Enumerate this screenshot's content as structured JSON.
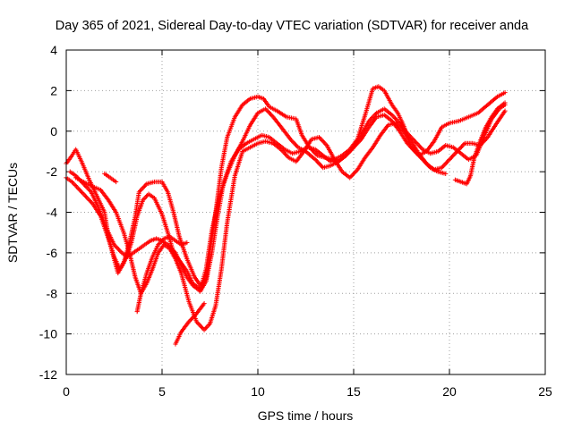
{
  "chart_data": {
    "type": "scatter",
    "title": "Day 365 of 2021, Sidereal Day-to-day VTEC variation (SDTVAR) for receiver anda",
    "xlabel": "GPS time / hours",
    "ylabel": "SDTVAR / TECUs",
    "xlim": [
      0,
      25
    ],
    "ylim": [
      -12,
      4
    ],
    "x_ticks": [
      0,
      5,
      10,
      15,
      20,
      25
    ],
    "y_ticks": [
      -12,
      -10,
      -8,
      -6,
      -4,
      -2,
      0,
      2,
      4
    ],
    "grid": true,
    "marker": "+",
    "marker_color": "#ff0000",
    "series": [
      {
        "x": [
          0.0,
          0.3,
          0.5,
          0.8,
          1.2,
          1.6,
          2.0,
          2.2,
          2.5,
          2.7,
          3.0,
          3.3,
          3.6,
          3.8,
          4.2,
          4.6,
          5.0,
          5.3,
          5.6,
          5.9,
          6.3,
          6.7,
          7.0,
          7.3,
          7.5,
          7.8,
          8.1,
          8.4,
          8.8,
          9.2,
          9.6,
          10.0,
          10.3,
          10.6,
          11.0,
          11.5,
          12.0,
          12.3,
          12.7,
          13.1,
          13.5,
          14.0,
          14.4,
          14.8,
          15.2,
          15.6,
          16.0,
          16.3,
          16.6,
          17.0,
          17.3,
          17.6,
          18.0,
          18.4,
          18.8,
          19.2,
          19.6,
          20.0,
          20.5,
          21.0,
          21.5,
          22.0,
          22.5,
          22.9
        ],
        "y": [
          -1.6,
          -1.2,
          -0.9,
          -1.5,
          -2.4,
          -3.2,
          -4.0,
          -5.2,
          -6.3,
          -7.0,
          -6.5,
          -5.5,
          -4.2,
          -3.0,
          -2.6,
          -2.5,
          -2.5,
          -3.0,
          -4.0,
          -5.2,
          -6.3,
          -7.2,
          -7.6,
          -7.3,
          -6.0,
          -4.0,
          -1.8,
          -0.3,
          0.7,
          1.3,
          1.6,
          1.7,
          1.6,
          1.2,
          1.0,
          0.7,
          0.6,
          -0.2,
          -0.8,
          -1.2,
          -1.3,
          -1.4,
          -1.2,
          -0.9,
          -0.4,
          0.8,
          2.1,
          2.2,
          2.0,
          1.3,
          0.9,
          0.3,
          -0.8,
          -1.2,
          -1.0,
          -0.5,
          0.2,
          0.4,
          0.5,
          0.7,
          0.9,
          1.3,
          1.7,
          1.9
        ]
      },
      {
        "x": [
          0.0,
          0.3,
          0.6,
          1.0,
          1.4,
          1.8,
          2.2,
          2.5,
          2.8,
          3.1,
          3.4,
          3.7,
          4.0,
          4.3,
          4.6,
          5.0,
          5.3,
          5.6,
          6.0,
          6.3,
          6.6,
          7.0,
          7.3,
          7.6,
          8.0,
          8.4,
          8.8,
          9.2,
          9.6,
          10.0,
          10.4,
          10.8,
          11.3,
          11.7,
          12.1,
          12.5,
          13.0,
          13.4,
          13.8,
          14.2,
          14.6,
          15.0,
          15.4,
          15.8,
          16.2,
          16.6,
          17.0,
          17.4,
          17.8,
          18.2,
          18.6,
          19.0,
          19.4,
          19.8,
          20.2,
          20.6,
          21.0,
          21.4,
          21.8,
          22.2,
          22.6,
          22.9
        ],
        "y": [
          -2.3,
          -2.5,
          -2.8,
          -3.2,
          -3.6,
          -4.2,
          -5.3,
          -6.2,
          -6.8,
          -6.3,
          -5.5,
          -4.2,
          -3.4,
          -3.1,
          -3.3,
          -4.1,
          -5.0,
          -6.0,
          -6.5,
          -6.9,
          -7.5,
          -7.8,
          -6.8,
          -4.9,
          -3.2,
          -2.1,
          -1.2,
          -0.5,
          0.3,
          0.9,
          1.1,
          0.7,
          0.1,
          -0.4,
          -0.8,
          -1.0,
          -1.4,
          -1.8,
          -1.7,
          -1.5,
          -1.2,
          -0.8,
          -0.2,
          0.5,
          0.9,
          1.1,
          0.8,
          0.4,
          -0.1,
          -0.5,
          -0.9,
          -1.1,
          -1.0,
          -0.7,
          -0.8,
          -1.1,
          -1.4,
          -1.2,
          -0.3,
          0.6,
          1.1,
          1.3
        ]
      },
      {
        "x": [
          0.2,
          0.5,
          0.9,
          1.3,
          1.7,
          2.1,
          2.5,
          2.9,
          3.2,
          3.5,
          3.8,
          4.1,
          4.4,
          4.7,
          5.0,
          5.3,
          5.7,
          6.0,
          6.3,
          6.6,
          7.0,
          7.3,
          7.6,
          7.9,
          8.2,
          8.6,
          9.0,
          9.4,
          9.8,
          10.2,
          10.6,
          11.0,
          11.4,
          11.8,
          12.2,
          12.6,
          13.0,
          13.4,
          13.8,
          14.2,
          14.6,
          15.0,
          15.4,
          15.8,
          16.2,
          16.6,
          17.0,
          17.4,
          17.8,
          18.2,
          18.6,
          19.0,
          19.4,
          19.8
        ],
        "y": [
          -2.0,
          -2.2,
          -2.6,
          -3.0,
          -3.8,
          -4.8,
          -5.6,
          -6.0,
          -6.2,
          -6.0,
          -5.8,
          -5.6,
          -5.4,
          -5.3,
          -5.4,
          -5.6,
          -6.0,
          -6.6,
          -7.2,
          -7.6,
          -7.9,
          -7.4,
          -6.0,
          -4.2,
          -2.6,
          -1.5,
          -0.9,
          -0.6,
          -0.4,
          -0.2,
          -0.3,
          -0.6,
          -0.9,
          -1.1,
          -1.0,
          -0.8,
          -0.9,
          -1.2,
          -1.5,
          -1.5,
          -1.2,
          -0.8,
          -0.4,
          0.2,
          0.7,
          0.8,
          0.5,
          0.0,
          -0.6,
          -1.0,
          -1.4,
          -1.8,
          -2.0,
          -2.1
        ]
      },
      {
        "x": [
          0.5,
          0.9,
          1.3,
          1.8,
          2.2,
          2.6,
          3.0,
          3.3,
          3.6,
          3.9,
          4.2,
          4.5,
          4.8,
          5.1,
          5.4,
          5.7,
          6.0,
          6.4,
          6.8,
          7.2,
          7.5,
          7.8,
          8.1,
          8.4,
          8.8,
          9.2,
          9.6,
          10.0,
          10.4,
          10.8,
          11.2,
          11.6,
          12.0,
          12.4,
          12.8,
          13.2,
          13.6,
          14.0,
          14.4,
          14.8,
          15.2,
          15.6,
          16.0,
          16.4,
          16.8,
          17.2,
          17.6,
          18.0,
          18.4,
          18.8,
          19.2,
          19.6,
          20.0,
          20.4,
          20.8,
          21.2,
          21.6,
          22.0,
          22.4,
          22.9
        ],
        "y": [
          -2.3,
          -2.5,
          -2.7,
          -2.9,
          -3.4,
          -4.0,
          -5.0,
          -6.0,
          -7.2,
          -8.0,
          -7.5,
          -6.8,
          -6.0,
          -5.6,
          -5.8,
          -6.3,
          -7.0,
          -8.4,
          -9.4,
          -9.8,
          -9.5,
          -8.6,
          -6.8,
          -4.5,
          -2.2,
          -1.0,
          -0.8,
          -0.6,
          -0.5,
          -0.6,
          -0.9,
          -1.3,
          -1.5,
          -1.0,
          -0.4,
          -0.3,
          -0.7,
          -1.4,
          -2.0,
          -2.3,
          -1.9,
          -1.3,
          -0.8,
          -0.2,
          0.3,
          0.4,
          0.0,
          -0.5,
          -1.1,
          -1.6,
          -1.9,
          -1.8,
          -1.4,
          -1.0,
          -0.6,
          -0.6,
          -0.7,
          -0.3,
          0.3,
          1.0
        ]
      },
      {
        "x": [
          3.7,
          3.9,
          4.2,
          4.5,
          4.8,
          5.1,
          5.4,
          5.7,
          6.0,
          6.3
        ],
        "y": [
          -8.9,
          -8.0,
          -7.0,
          -6.2,
          -5.6,
          -5.3,
          -5.2,
          -5.4,
          -5.6,
          -5.5
        ]
      },
      {
        "x": [
          5.7,
          6.0,
          6.4,
          6.8,
          7.2
        ],
        "y": [
          -10.5,
          -9.9,
          -9.4,
          -9.0,
          -8.5
        ]
      },
      {
        "x": [
          2.0,
          2.3,
          2.6
        ],
        "y": [
          -2.1,
          -2.3,
          -2.5
        ]
      },
      {
        "x": [
          20.3,
          20.6,
          20.9,
          21.1,
          21.3,
          21.6,
          21.9,
          22.2,
          22.5,
          22.9
        ],
        "y": [
          -2.4,
          -2.5,
          -2.6,
          -2.2,
          -1.3,
          -0.5,
          0.2,
          0.7,
          1.1,
          1.4
        ]
      }
    ]
  }
}
